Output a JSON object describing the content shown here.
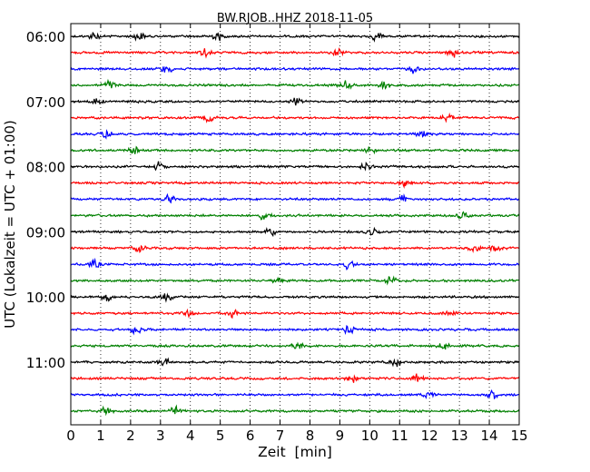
{
  "chart_data": {
    "type": "line",
    "title": "BW.RJOB..HHZ 2018-11-05",
    "xlabel": "Zeit  [min]",
    "ylabel": "UTC (Lokalzeit = UTC + 01:00)",
    "xlim": [
      0,
      15
    ],
    "x_ticks": [
      0,
      1,
      2,
      3,
      4,
      5,
      6,
      7,
      8,
      9,
      10,
      11,
      12,
      13,
      14,
      15
    ],
    "x_tick_labels": [
      "0",
      "1",
      "2",
      "3",
      "4",
      "5",
      "6",
      "7",
      "8",
      "9",
      "10",
      "11",
      "12",
      "13",
      "14",
      "15"
    ],
    "y_tick_labels": [
      "06:00",
      "07:00",
      "08:00",
      "09:00",
      "10:00",
      "11:00"
    ],
    "grid_x": true,
    "trace_colors": [
      "#000000",
      "#ff0000",
      "#0000ff",
      "#008000"
    ],
    "traces": [
      {
        "start": "06:00",
        "color": "#000000",
        "burst_min": [
          0.8,
          2.3,
          4.9,
          10.2
        ]
      },
      {
        "start": "06:15",
        "color": "#ff0000",
        "burst_min": [
          4.5,
          8.9,
          12.8
        ]
      },
      {
        "start": "06:30",
        "color": "#0000ff",
        "burst_min": [
          3.2,
          11.5
        ]
      },
      {
        "start": "06:45",
        "color": "#008000",
        "burst_min": [
          1.3,
          9.2,
          10.5
        ]
      },
      {
        "start": "07:00",
        "color": "#000000",
        "burst_min": [
          0.9,
          7.5
        ]
      },
      {
        "start": "07:15",
        "color": "#ff0000",
        "burst_min": [
          4.6,
          12.6
        ]
      },
      {
        "start": "07:30",
        "color": "#0000ff",
        "burst_min": [
          1.2,
          11.7
        ]
      },
      {
        "start": "07:45",
        "color": "#008000",
        "burst_min": [
          2.1,
          10.0
        ]
      },
      {
        "start": "08:00",
        "color": "#000000",
        "burst_min": [
          2.9,
          9.9
        ]
      },
      {
        "start": "08:15",
        "color": "#ff0000",
        "burst_min": [
          11.2
        ]
      },
      {
        "start": "08:30",
        "color": "#0000ff",
        "burst_min": [
          3.3,
          11.1
        ]
      },
      {
        "start": "08:45",
        "color": "#008000",
        "burst_min": [
          6.5,
          13.1
        ]
      },
      {
        "start": "09:00",
        "color": "#000000",
        "burst_min": [
          6.7,
          10.1
        ]
      },
      {
        "start": "09:15",
        "color": "#ff0000",
        "burst_min": [
          2.3,
          13.5,
          14.2
        ]
      },
      {
        "start": "09:30",
        "color": "#0000ff",
        "burst_min": [
          0.8,
          9.3
        ]
      },
      {
        "start": "09:45",
        "color": "#008000",
        "burst_min": [
          6.9,
          10.7
        ]
      },
      {
        "start": "10:00",
        "color": "#000000",
        "burst_min": [
          1.2,
          3.2
        ]
      },
      {
        "start": "10:15",
        "color": "#ff0000",
        "burst_min": [
          3.9,
          5.4,
          12.7
        ]
      },
      {
        "start": "10:30",
        "color": "#0000ff",
        "burst_min": [
          2.2,
          9.3
        ]
      },
      {
        "start": "10:45",
        "color": "#008000",
        "burst_min": [
          7.6,
          12.5
        ]
      },
      {
        "start": "11:00",
        "color": "#000000",
        "burst_min": [
          3.1,
          10.9
        ]
      },
      {
        "start": "11:15",
        "color": "#ff0000",
        "burst_min": [
          9.4,
          11.6
        ]
      },
      {
        "start": "11:30",
        "color": "#0000ff",
        "burst_min": [
          12.0,
          14.1
        ]
      },
      {
        "start": "11:45",
        "color": "#008000",
        "burst_min": [
          1.2,
          3.5
        ]
      }
    ]
  }
}
